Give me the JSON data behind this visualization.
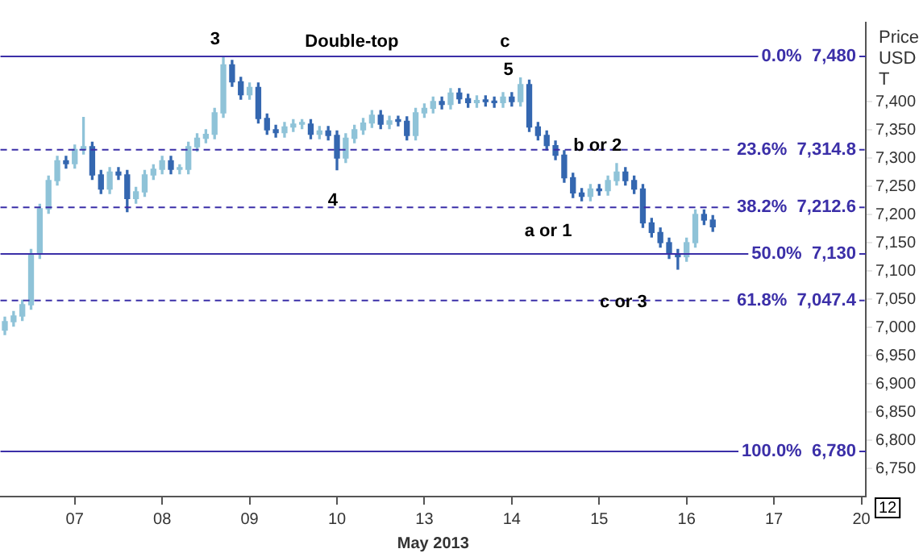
{
  "chart_data": {
    "type": "candlestick",
    "xlabel": "May 2013",
    "ylabel": "Price USD T",
    "grid": false,
    "categories": [
      null,
      null,
      null,
      null,
      null,
      null,
      null,
      null,
      "07",
      null,
      null,
      null,
      null,
      null,
      null,
      null,
      null,
      null,
      "08",
      null,
      null,
      null,
      null,
      null,
      null,
      null,
      null,
      null,
      "09",
      null,
      null,
      null,
      null,
      null,
      null,
      null,
      null,
      null,
      "10",
      null,
      null,
      null,
      null,
      null,
      null,
      null,
      null,
      null,
      "13",
      null,
      null,
      null,
      null,
      null,
      null,
      null,
      null,
      null,
      "14",
      null,
      null,
      null,
      null,
      null,
      null,
      null,
      null,
      null,
      "15",
      null,
      null,
      null,
      null,
      null,
      null,
      null,
      null,
      null,
      "16",
      null,
      null,
      null,
      null,
      null,
      null,
      null,
      null,
      null,
      "17",
      null,
      null,
      null,
      null,
      null,
      null,
      null,
      null,
      null,
      "20"
    ],
    "colors": [
      "#8fc3d8",
      "#8fc3d8",
      "#8fc3d8",
      "#8fc3d8",
      "#8fc3d8",
      "#8fc3d8",
      "#8fc3d8",
      "#3467b0",
      "#8fc3d8",
      "#8fc3d8",
      "#3467b0",
      "#3467b0",
      "#8fc3d8",
      "#3467b0",
      "#3467b0",
      "#8fc3d8",
      "#8fc3d8",
      "#8fc3d8",
      "#8fc3d8",
      "#3467b0",
      "#8fc3d8",
      "#8fc3d8",
      "#8fc3d8",
      "#8fc3d8",
      "#8fc3d8",
      "#8fc3d8",
      "#3467b0",
      "#3467b0",
      "#8fc3d8",
      "#3467b0",
      "#3467b0",
      "#3467b0",
      "#8fc3d8",
      "#8fc3d8",
      "#8fc3d8",
      "#3467b0",
      "#8fc3d8",
      "#3467b0",
      "#3467b0",
      "#8fc3d8",
      "#8fc3d8",
      "#8fc3d8",
      "#8fc3d8",
      "#3467b0",
      "#8fc3d8",
      "#3467b0",
      "#3467b0",
      "#8fc3d8",
      "#8fc3d8",
      "#8fc3d8",
      "#3467b0",
      "#8fc3d8",
      "#3467b0",
      "#3467b0",
      "#8fc3d8",
      "#3467b0",
      "#3467b0",
      "#8fc3d8",
      "#3467b0",
      "#8fc3d8",
      "#3467b0",
      "#3467b0",
      "#3467b0",
      "#3467b0",
      "#3467b0",
      "#3467b0",
      "#3467b0",
      "#8fc3d8",
      "#3467b0",
      "#8fc3d8",
      "#8fc3d8",
      "#3467b0",
      "#3467b0",
      "#3467b0",
      "#3467b0",
      "#3467b0",
      "#3467b0",
      "#3467b0",
      "#8fc3d8",
      "#8fc3d8",
      "#3467b0",
      "#3467b0",
      null,
      null,
      null,
      null,
      null,
      null,
      null,
      null,
      null,
      null,
      null,
      null,
      null,
      null,
      null,
      null,
      null
    ],
    "ylim": [
      6700,
      7540
    ],
    "yticks": [
      {
        "value": 6750,
        "label": "6,750"
      },
      {
        "value": 6800,
        "label": "6,800"
      },
      {
        "value": 6850,
        "label": "6,850"
      },
      {
        "value": 6900,
        "label": "6,900"
      },
      {
        "value": 6950,
        "label": "6,950"
      },
      {
        "value": 7000,
        "label": "7,000"
      },
      {
        "value": 7050,
        "label": "7,050"
      },
      {
        "value": 7100,
        "label": "7,100"
      },
      {
        "value": 7150,
        "label": "7,150"
      },
      {
        "value": 7200,
        "label": "7,200"
      },
      {
        "value": 7250,
        "label": "7,250"
      },
      {
        "value": 7300,
        "label": "7,300"
      },
      {
        "value": 7350,
        "label": "7,350"
      },
      {
        "value": 7400,
        "label": "7,400"
      }
    ],
    "ohlc": [
      [
        6995,
        7018,
        6987,
        7010
      ],
      [
        7010,
        7028,
        7002,
        7020
      ],
      [
        7020,
        7048,
        7012,
        7040
      ],
      [
        7040,
        7138,
        7032,
        7130
      ],
      [
        7130,
        7218,
        7122,
        7210
      ],
      [
        7210,
        7268,
        7202,
        7260
      ],
      [
        7260,
        7303,
        7252,
        7295
      ],
      [
        7295,
        7303,
        7282,
        7290
      ],
      [
        7290,
        7323,
        7282,
        7315
      ],
      [
        7315,
        7372,
        7307,
        7320
      ],
      [
        7320,
        7328,
        7262,
        7270
      ],
      [
        7270,
        7278,
        7237,
        7245
      ],
      [
        7245,
        7283,
        7237,
        7275
      ],
      [
        7275,
        7283,
        7262,
        7270
      ],
      [
        7270,
        7278,
        7205,
        7228
      ],
      [
        7228,
        7248,
        7220,
        7240
      ],
      [
        7240,
        7278,
        7232,
        7270
      ],
      [
        7270,
        7288,
        7262,
        7280
      ],
      [
        7280,
        7303,
        7272,
        7295
      ],
      [
        7295,
        7303,
        7272,
        7280
      ],
      [
        7280,
        7288,
        7272,
        7280
      ],
      [
        7280,
        7328,
        7272,
        7320
      ],
      [
        7320,
        7343,
        7312,
        7335
      ],
      [
        7335,
        7350,
        7327,
        7342
      ],
      [
        7342,
        7388,
        7334,
        7380
      ],
      [
        7380,
        7480,
        7372,
        7465
      ],
      [
        7465,
        7473,
        7427,
        7435
      ],
      [
        7435,
        7443,
        7404,
        7412
      ],
      [
        7412,
        7433,
        7404,
        7425
      ],
      [
        7425,
        7433,
        7362,
        7370
      ],
      [
        7370,
        7378,
        7342,
        7350
      ],
      [
        7350,
        7358,
        7337,
        7345
      ],
      [
        7345,
        7363,
        7337,
        7355
      ],
      [
        7355,
        7368,
        7347,
        7360
      ],
      [
        7360,
        7368,
        7352,
        7360
      ],
      [
        7360,
        7368,
        7334,
        7342
      ],
      [
        7342,
        7356,
        7334,
        7348
      ],
      [
        7348,
        7356,
        7332,
        7340
      ],
      [
        7340,
        7348,
        7279,
        7300
      ],
      [
        7300,
        7343,
        7292,
        7335
      ],
      [
        7335,
        7358,
        7327,
        7350
      ],
      [
        7350,
        7370,
        7342,
        7362
      ],
      [
        7362,
        7384,
        7354,
        7376
      ],
      [
        7376,
        7384,
        7352,
        7360
      ],
      [
        7360,
        7374,
        7352,
        7366
      ],
      [
        7366,
        7374,
        7357,
        7365
      ],
      [
        7365,
        7373,
        7332,
        7340
      ],
      [
        7340,
        7388,
        7332,
        7380
      ],
      [
        7380,
        7396,
        7372,
        7388
      ],
      [
        7388,
        7408,
        7380,
        7400
      ],
      [
        7400,
        7408,
        7387,
        7395
      ],
      [
        7395,
        7423,
        7387,
        7415
      ],
      [
        7415,
        7423,
        7397,
        7405
      ],
      [
        7405,
        7413,
        7390,
        7398
      ],
      [
        7398,
        7410,
        7390,
        7402
      ],
      [
        7402,
        7410,
        7392,
        7400
      ],
      [
        7400,
        7408,
        7390,
        7398
      ],
      [
        7398,
        7416,
        7390,
        7408
      ],
      [
        7408,
        7416,
        7392,
        7400
      ],
      [
        7400,
        7442,
        7392,
        7430
      ],
      [
        7430,
        7438,
        7347,
        7355
      ],
      [
        7355,
        7363,
        7332,
        7340
      ],
      [
        7340,
        7348,
        7314,
        7322
      ],
      [
        7322,
        7330,
        7297,
        7305
      ],
      [
        7305,
        7313,
        7257,
        7265
      ],
      [
        7265,
        7273,
        7230,
        7238
      ],
      [
        7238,
        7246,
        7224,
        7232
      ],
      [
        7232,
        7253,
        7224,
        7245
      ],
      [
        7245,
        7253,
        7234,
        7242
      ],
      [
        7242,
        7268,
        7234,
        7260
      ],
      [
        7260,
        7290,
        7252,
        7275
      ],
      [
        7275,
        7283,
        7252,
        7260
      ],
      [
        7260,
        7268,
        7237,
        7245
      ],
      [
        7245,
        7253,
        7177,
        7185
      ],
      [
        7185,
        7193,
        7160,
        7168
      ],
      [
        7168,
        7176,
        7142,
        7150
      ],
      [
        7150,
        7158,
        7122,
        7130
      ],
      [
        7130,
        7138,
        7103,
        7125
      ],
      [
        7125,
        7158,
        7117,
        7150
      ],
      [
        7150,
        7208,
        7142,
        7200
      ],
      [
        7200,
        7208,
        7182,
        7190
      ],
      [
        7190,
        7198,
        7170,
        7178
      ],
      null,
      null,
      null,
      null,
      null,
      null,
      null,
      null,
      null,
      null,
      null,
      null,
      null,
      null,
      null,
      null,
      null
    ],
    "ref_lines": [
      {
        "axis": "y",
        "value": 7480,
        "label": "0.0%  7,480",
        "color": "#3b2fa8",
        "line_style": "solid"
      },
      {
        "axis": "y",
        "value": 7314.8,
        "label": "23.6%  7,314.8",
        "color": "#3b2fa8",
        "line_style": "dashed"
      },
      {
        "axis": "y",
        "value": 7212.6,
        "label": "38.2%  7,212.6",
        "color": "#3b2fa8",
        "line_style": "dashed"
      },
      {
        "axis": "y",
        "value": 7130,
        "label": "50.0%  7,130",
        "color": "#3b2fa8",
        "line_style": "solid"
      },
      {
        "axis": "y",
        "value": 7047.4,
        "label": "61.8%  7,047.4",
        "color": "#3b2fa8",
        "line_style": "dashed"
      },
      {
        "axis": "y",
        "value": 6780,
        "label": "100.0%  6,780",
        "color": "#3b2fa8",
        "line_style": "solid"
      }
    ],
    "annotations": [
      "3",
      "Double-top",
      "c",
      "5",
      "4",
      "b or 2",
      "a or 1",
      "c or 3",
      "12"
    ]
  }
}
